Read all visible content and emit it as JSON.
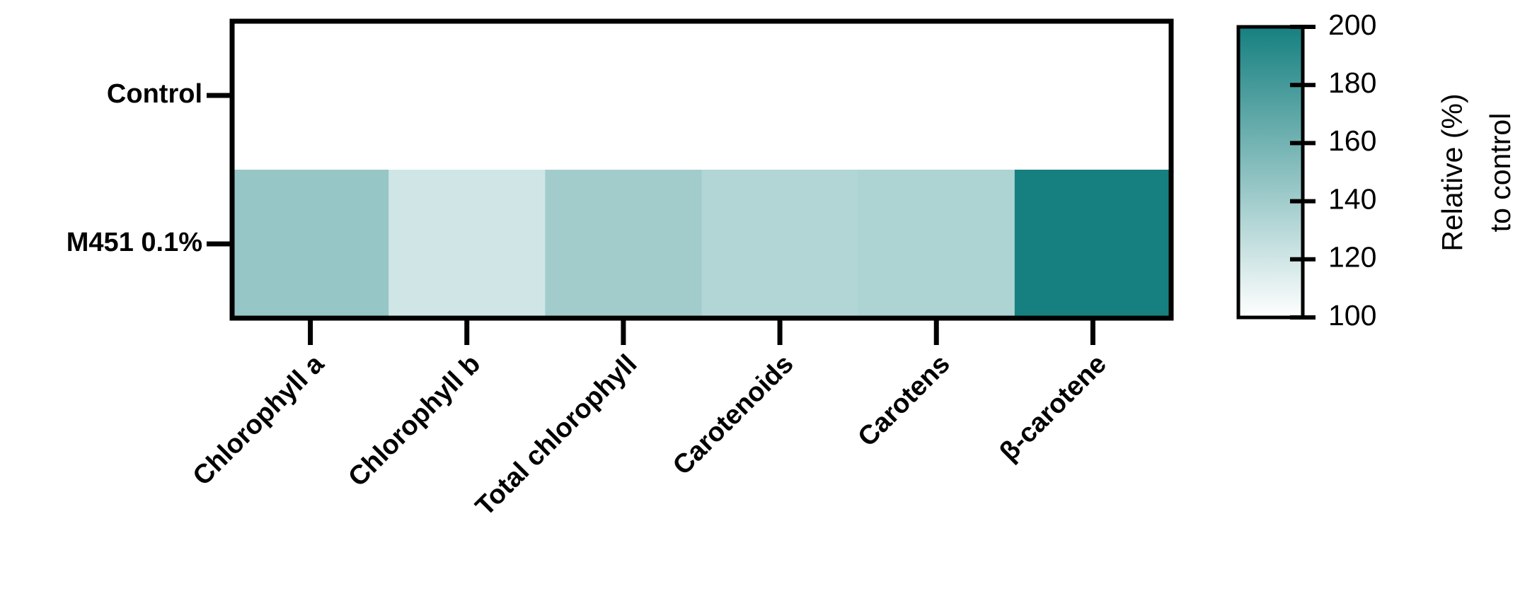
{
  "chart_data": {
    "type": "heatmap",
    "rows": [
      "Control",
      "M451 0.1%"
    ],
    "columns": [
      "Chlorophyll a",
      "Chlorophyll b",
      "Total chlorophyll",
      "Carotenoids",
      "Carotens",
      "β-carotene"
    ],
    "values": [
      [
        100,
        100,
        100,
        100,
        100,
        100
      ],
      [
        145,
        120,
        140,
        133,
        135,
        200
      ]
    ],
    "zlim": [
      100,
      200
    ],
    "zticks": [
      100,
      120,
      140,
      160,
      180,
      200
    ],
    "colormap": [
      "#ffffff",
      "#168080"
    ],
    "colorbar_label": [
      "Relative (%)",
      "to control"
    ]
  }
}
